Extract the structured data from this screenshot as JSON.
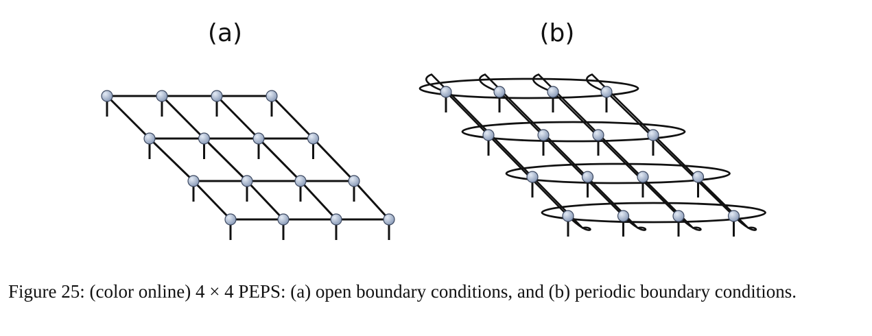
{
  "figure": {
    "panels": [
      {
        "label": "(a)",
        "boundary": "open"
      },
      {
        "label": "(b)",
        "boundary": "periodic"
      }
    ],
    "grid": {
      "rows": 4,
      "cols": 4
    },
    "colors": {
      "line": "#111111",
      "node_fill": "#8a9bb8",
      "node_highlight": "#e4ebf5",
      "node_stroke": "#3c4860"
    }
  },
  "caption": {
    "text": "Figure 25: (color online) 4 × 4 PEPS: (a) open boundary conditions, and (b) periodic boundary conditions."
  }
}
